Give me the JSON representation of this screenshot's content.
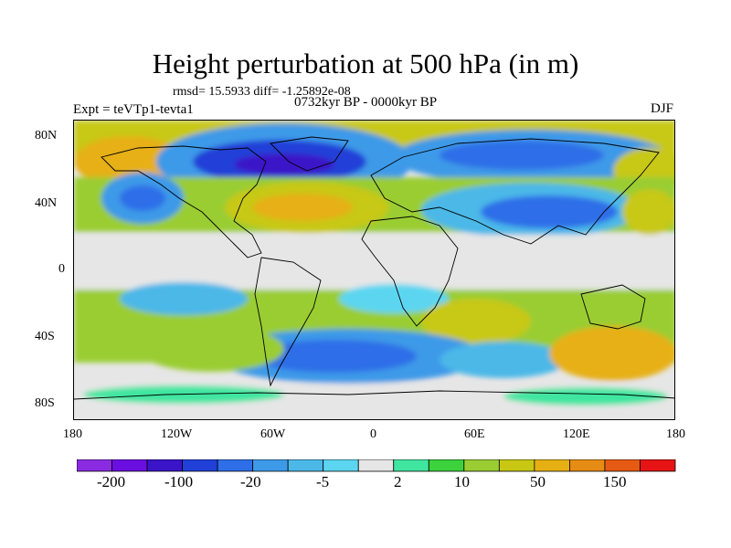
{
  "title": "Height perturbation at 500 hPa (in m)",
  "stats": "rmsd= 15.5933 diff= -1.25892e-08",
  "left_label": "Expt = teVTp1-tevta1",
  "center_label": "0732kyr BP - 0000kyr BP",
  "right_label": "DJF",
  "map": {
    "projection": "cylindrical equidistant",
    "lon_range": [
      -180,
      180
    ],
    "lat_range": [
      -90,
      90
    ],
    "lat_ticks": [
      {
        "value": 80,
        "label": "80N"
      },
      {
        "value": 40,
        "label": "40N"
      },
      {
        "value": 0,
        "label": "0"
      },
      {
        "value": -40,
        "label": "40S"
      },
      {
        "value": -80,
        "label": "80S"
      }
    ],
    "lon_ticks": [
      {
        "value": -180,
        "label": "180"
      },
      {
        "value": -120,
        "label": "120W"
      },
      {
        "value": -60,
        "label": "60W"
      },
      {
        "value": 0,
        "label": "0"
      },
      {
        "value": 60,
        "label": "60E"
      },
      {
        "value": 120,
        "label": "120E"
      },
      {
        "value": 180,
        "label": "180"
      }
    ]
  },
  "colorbar": {
    "colors": [
      "#8a2be2",
      "#6a0fe0",
      "#3a14c8",
      "#2040d8",
      "#2e6ee8",
      "#3d9ae8",
      "#4cb8e8",
      "#5cd6f0",
      "#e6e6e6",
      "#40e6a0",
      "#3cd23c",
      "#9acd32",
      "#c8c814",
      "#e6b014",
      "#e68c14",
      "#e65a14",
      "#e61414"
    ],
    "labels": [
      {
        "after_index": 0,
        "text": "-200"
      },
      {
        "after_index": 2,
        "text": "-100"
      },
      {
        "after_index": 4,
        "text": "-20"
      },
      {
        "after_index": 6,
        "text": "-5"
      },
      {
        "after_index": 8,
        "text": "2"
      },
      {
        "after_index": 10,
        "text": "10"
      },
      {
        "after_index": 12,
        "text": "50"
      },
      {
        "after_index": 14,
        "text": "150"
      }
    ]
  }
}
